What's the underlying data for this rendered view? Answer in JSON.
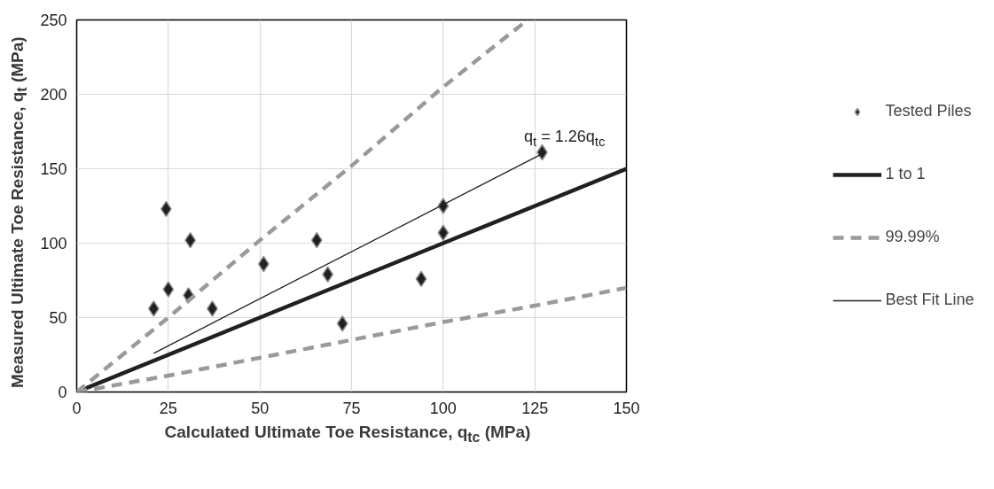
{
  "chart_data": {
    "type": "scatter",
    "xlabel": "Calculated Ultimate Toe Resistance, q$_{tc}$ (MPa)",
    "ylabel": "Measured Ultimate Toe Resistance, q$_{t}$ (MPa)",
    "x": [
      21,
      24.4,
      25,
      31,
      30.5,
      37,
      51,
      65.5,
      68.5,
      72.5,
      94,
      100,
      100,
      127
    ],
    "series": [
      {
        "name": "Tested Piles",
        "marker": "diamond",
        "color": "#231f20",
        "values": [
          56,
          123,
          69,
          102,
          65,
          56,
          86,
          102,
          79,
          46,
          76,
          125,
          107,
          161
        ]
      },
      {
        "name": "1 to 1",
        "type": "line",
        "marker": "none",
        "color": "#231f20",
        "x": [
          0,
          150
        ],
        "values": [
          0,
          150
        ]
      },
      {
        "name": "99.99%",
        "type": "line",
        "marker": "none",
        "line_style": "dashed",
        "color": "#9a9a9c",
        "x": [
          0,
          25,
          50,
          75,
          100,
          123
        ],
        "values": [
          0,
          50,
          102,
          152,
          205,
          250
        ]
      },
      {
        "type": "line",
        "marker": "none",
        "line_style": "dashed",
        "color": "#9a9a9c",
        "x": [
          0,
          25,
          50,
          75,
          100,
          125,
          150
        ],
        "values": [
          0,
          11,
          23,
          35,
          47,
          58,
          70
        ]
      },
      {
        "name": "Best Fit Line",
        "type": "line",
        "marker": "none",
        "color": "#231f20",
        "x": [
          21,
          127
        ],
        "values": [
          26,
          160
        ]
      }
    ],
    "annotations": [
      "q$_{t}$ = 1.26q$_{tc}$"
    ],
    "xlim": [
      0,
      150
    ],
    "xticks": [
      0,
      25,
      50,
      75,
      100,
      125,
      150
    ],
    "ylim": [
      0,
      250
    ],
    "yticks": [
      0,
      50,
      100,
      150,
      200,
      250
    ],
    "grid": true,
    "legend": "right"
  }
}
